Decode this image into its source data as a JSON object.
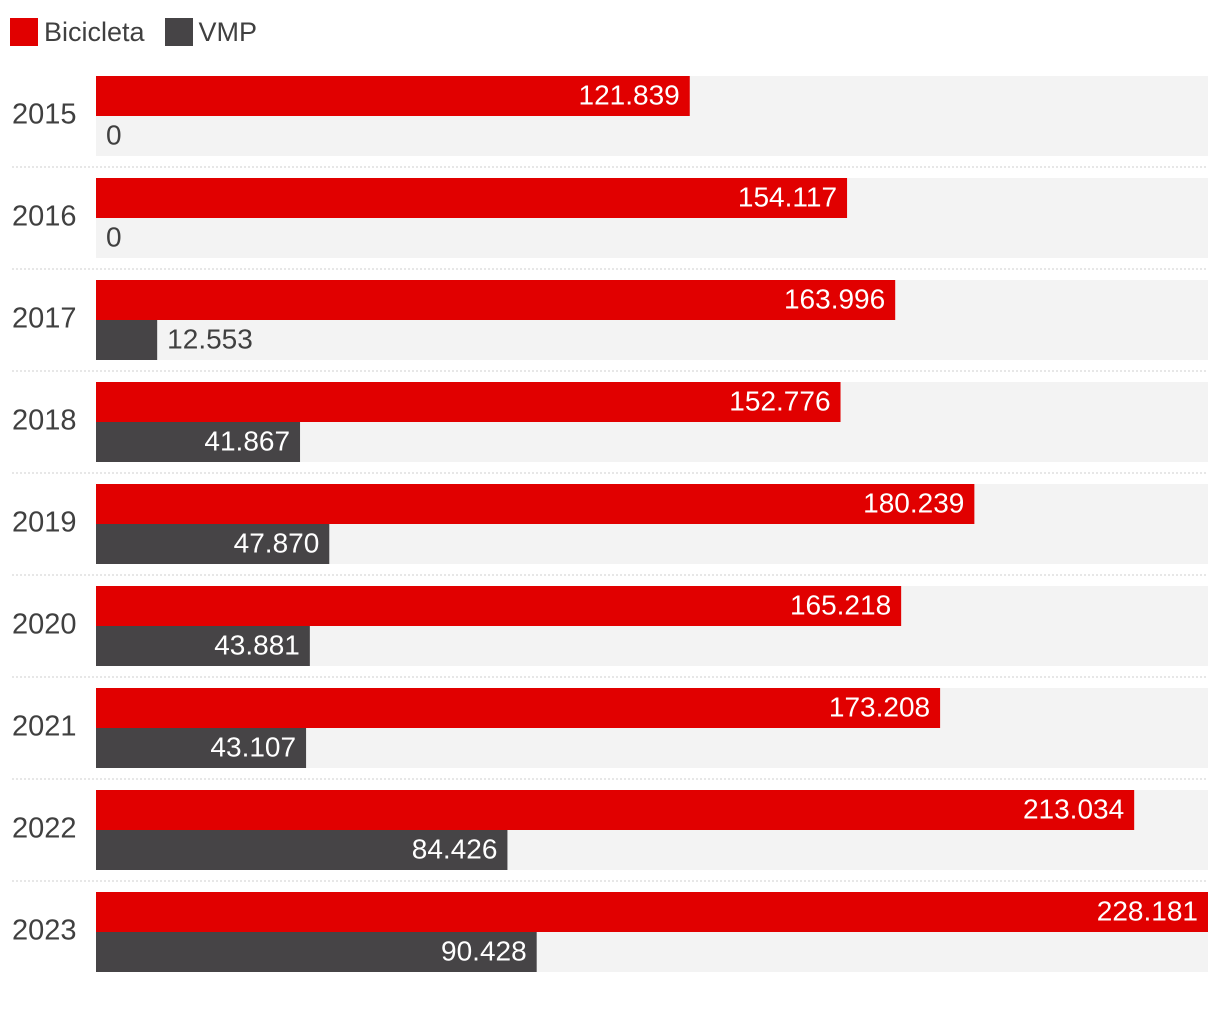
{
  "colors": {
    "bicicleta": "#e10000",
    "vmp": "#464446",
    "track": "#f3f3f3",
    "separator": "#cfcfcf"
  },
  "legend": [
    {
      "label": "Bicicleta",
      "color": "#e10000"
    },
    {
      "label": "VMP",
      "color": "#464446"
    }
  ],
  "chart_data": {
    "type": "bar",
    "orientation": "horizontal",
    "categories": [
      "2015",
      "2016",
      "2017",
      "2018",
      "2019",
      "2020",
      "2021",
      "2022",
      "2023"
    ],
    "series": [
      {
        "name": "Bicicleta",
        "values": [
          121839,
          154117,
          163996,
          152776,
          180239,
          165218,
          173208,
          213034,
          228181
        ],
        "labels": [
          "121.839",
          "154.117",
          "163.996",
          "152.776",
          "180.239",
          "165.218",
          "173.208",
          "213.034",
          "228.181"
        ]
      },
      {
        "name": "VMP",
        "values": [
          0,
          0,
          12553,
          41867,
          47870,
          43881,
          43107,
          84426,
          90428
        ],
        "labels": [
          "0",
          "0",
          "12.553",
          "41.867",
          "47.870",
          "43.881",
          "43.107",
          "84.426",
          "90.428"
        ]
      }
    ],
    "xlim": [
      0,
      228181
    ],
    "legend_position": "top-left",
    "grid": false
  }
}
